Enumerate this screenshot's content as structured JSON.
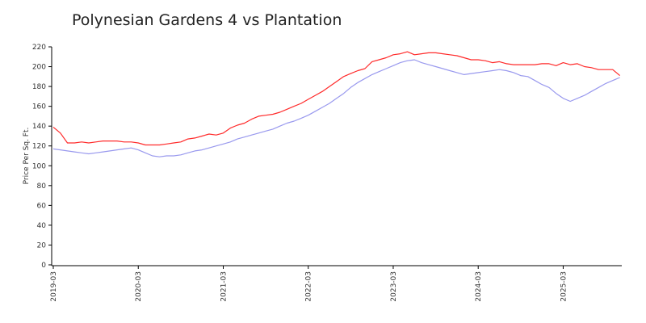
{
  "chart_data": {
    "type": "line",
    "title": "Polynesian Gardens 4 vs Plantation",
    "xlabel": "",
    "ylabel": "Price Per Sq. Ft.",
    "ylim": [
      0,
      220
    ],
    "yticks": [
      0,
      20,
      40,
      60,
      80,
      100,
      120,
      140,
      160,
      180,
      200,
      220
    ],
    "xticks": [
      "2019-03",
      "2020-03",
      "2021-03",
      "2022-03",
      "2023-03",
      "2024-03",
      "2025-03"
    ],
    "x_start": "2019-03",
    "grid": false,
    "legend": "none",
    "series": [
      {
        "color": "#ff2a2a",
        "values": [
          139,
          133,
          123,
          123,
          124,
          123,
          124,
          125,
          125,
          125,
          124,
          124,
          123,
          121,
          121,
          121,
          122,
          123,
          124,
          127,
          128,
          130,
          132,
          131,
          133,
          138,
          141,
          143,
          147,
          150,
          151,
          152,
          154,
          157,
          160,
          163,
          167,
          171,
          175,
          180,
          185,
          190,
          193,
          196,
          198,
          205,
          207,
          209,
          212,
          213,
          215,
          212,
          213,
          214,
          214,
          213,
          212,
          211,
          209,
          207,
          207,
          206,
          204,
          205,
          203,
          202,
          202,
          202,
          202,
          203,
          203,
          201,
          204,
          202,
          203,
          200,
          199,
          197,
          197,
          197,
          191
        ]
      },
      {
        "color": "#9999ee",
        "values": [
          117,
          116,
          115,
          114,
          113,
          112,
          113,
          114,
          115,
          116,
          117,
          118,
          116,
          113,
          110,
          109,
          110,
          110,
          111,
          113,
          115,
          116,
          118,
          120,
          122,
          124,
          127,
          129,
          131,
          133,
          135,
          137,
          140,
          143,
          145,
          148,
          151,
          155,
          159,
          163,
          168,
          173,
          179,
          184,
          188,
          192,
          195,
          198,
          201,
          204,
          206,
          207,
          204,
          202,
          200,
          198,
          196,
          194,
          192,
          193,
          194,
          195,
          196,
          197,
          196,
          194,
          191,
          190,
          186,
          182,
          179,
          173,
          168,
          165,
          168,
          171,
          175,
          179,
          183,
          186,
          189
        ]
      }
    ]
  }
}
